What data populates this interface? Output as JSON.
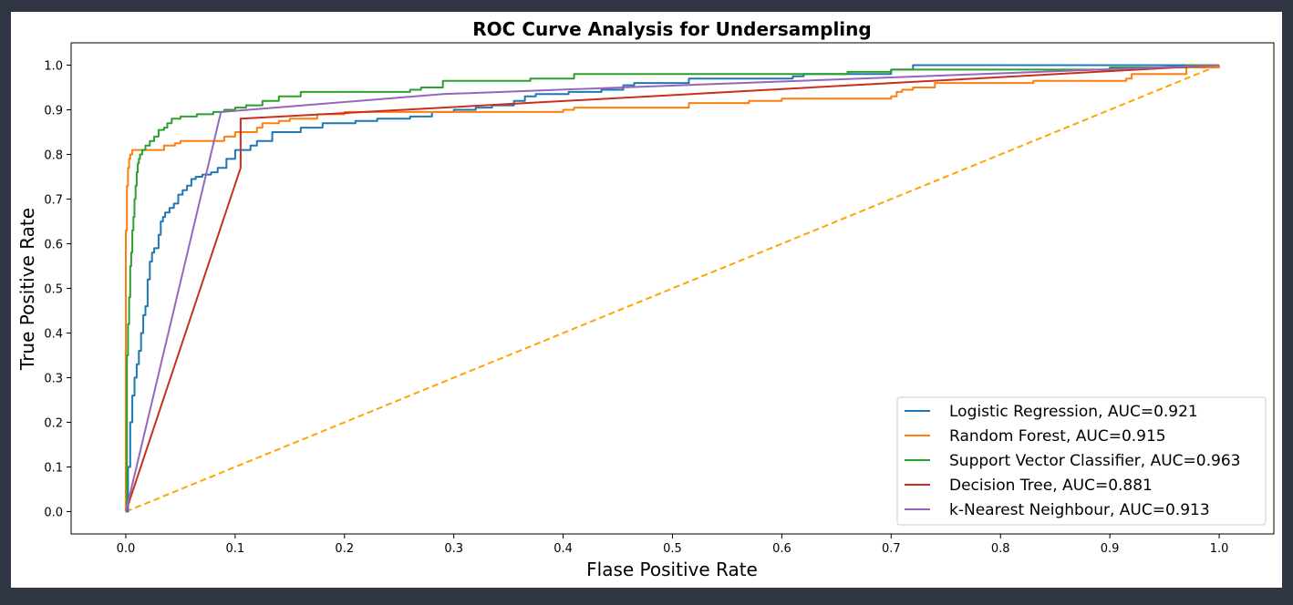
{
  "chart_data": {
    "type": "line",
    "title": "ROC Curve Analysis for Undersampling",
    "xlabel": "Flase Positive Rate",
    "ylabel": "True Positive Rate",
    "xlim": [
      -0.05,
      1.05
    ],
    "ylim": [
      -0.05,
      1.05
    ],
    "x_ticks": [
      0.0,
      0.1,
      0.2,
      0.3,
      0.4,
      0.5,
      0.6,
      0.7,
      0.8,
      0.9,
      1.0
    ],
    "y_ticks": [
      0.0,
      0.1,
      0.2,
      0.3,
      0.4,
      0.5,
      0.6,
      0.7,
      0.8,
      0.9,
      1.0
    ],
    "x_tick_labels": [
      "0.0",
      "0.1",
      "0.2",
      "0.3",
      "0.4",
      "0.5",
      "0.6",
      "0.7",
      "0.8",
      "0.9",
      "1.0"
    ],
    "y_tick_labels": [
      "0.0",
      "0.1",
      "0.2",
      "0.3",
      "0.4",
      "0.5",
      "0.6",
      "0.7",
      "0.8",
      "0.9",
      "1.0"
    ],
    "grid": false,
    "legend_position": "lower-right",
    "series": [
      {
        "name": "Logistic Regression, AUC=0.921",
        "color": "#1f77b4",
        "style": "step",
        "points": [
          [
            0,
            0
          ],
          [
            0.002,
            0.1
          ],
          [
            0.004,
            0.2
          ],
          [
            0.006,
            0.26
          ],
          [
            0.008,
            0.3
          ],
          [
            0.01,
            0.33
          ],
          [
            0.012,
            0.36
          ],
          [
            0.014,
            0.4
          ],
          [
            0.016,
            0.44
          ],
          [
            0.018,
            0.46
          ],
          [
            0.02,
            0.52
          ],
          [
            0.022,
            0.56
          ],
          [
            0.024,
            0.58
          ],
          [
            0.026,
            0.59
          ],
          [
            0.03,
            0.62
          ],
          [
            0.032,
            0.65
          ],
          [
            0.034,
            0.66
          ],
          [
            0.036,
            0.67
          ],
          [
            0.04,
            0.68
          ],
          [
            0.044,
            0.69
          ],
          [
            0.048,
            0.71
          ],
          [
            0.052,
            0.72
          ],
          [
            0.056,
            0.73
          ],
          [
            0.06,
            0.745
          ],
          [
            0.064,
            0.75
          ],
          [
            0.07,
            0.755
          ],
          [
            0.078,
            0.76
          ],
          [
            0.084,
            0.77
          ],
          [
            0.092,
            0.79
          ],
          [
            0.1,
            0.81
          ],
          [
            0.114,
            0.82
          ],
          [
            0.12,
            0.83
          ],
          [
            0.134,
            0.85
          ],
          [
            0.15,
            0.85
          ],
          [
            0.16,
            0.86
          ],
          [
            0.18,
            0.87
          ],
          [
            0.21,
            0.875
          ],
          [
            0.23,
            0.88
          ],
          [
            0.26,
            0.885
          ],
          [
            0.28,
            0.895
          ],
          [
            0.3,
            0.9
          ],
          [
            0.32,
            0.905
          ],
          [
            0.335,
            0.91
          ],
          [
            0.355,
            0.92
          ],
          [
            0.365,
            0.93
          ],
          [
            0.375,
            0.935
          ],
          [
            0.405,
            0.94
          ],
          [
            0.435,
            0.945
          ],
          [
            0.455,
            0.955
          ],
          [
            0.465,
            0.96
          ],
          [
            0.515,
            0.97
          ],
          [
            0.61,
            0.975
          ],
          [
            0.62,
            0.98
          ],
          [
            0.7,
            0.99
          ],
          [
            0.72,
            1.0
          ],
          [
            1.0,
            1.0
          ]
        ]
      },
      {
        "name": "Random Forest, AUC=0.915",
        "color": "#ff7f0e",
        "style": "step",
        "points": [
          [
            0,
            0
          ],
          [
            0.0,
            0.63
          ],
          [
            0.001,
            0.73
          ],
          [
            0.002,
            0.77
          ],
          [
            0.003,
            0.79
          ],
          [
            0.004,
            0.8
          ],
          [
            0.006,
            0.81
          ],
          [
            0.03,
            0.81
          ],
          [
            0.035,
            0.82
          ],
          [
            0.045,
            0.825
          ],
          [
            0.05,
            0.83
          ],
          [
            0.09,
            0.84
          ],
          [
            0.1,
            0.85
          ],
          [
            0.11,
            0.85
          ],
          [
            0.12,
            0.86
          ],
          [
            0.125,
            0.87
          ],
          [
            0.14,
            0.875
          ],
          [
            0.15,
            0.88
          ],
          [
            0.175,
            0.89
          ],
          [
            0.2,
            0.895
          ],
          [
            0.38,
            0.895
          ],
          [
            0.4,
            0.9
          ],
          [
            0.41,
            0.905
          ],
          [
            0.515,
            0.915
          ],
          [
            0.57,
            0.92
          ],
          [
            0.6,
            0.925
          ],
          [
            0.7,
            0.93
          ],
          [
            0.705,
            0.94
          ],
          [
            0.71,
            0.945
          ],
          [
            0.72,
            0.95
          ],
          [
            0.74,
            0.96
          ],
          [
            0.82,
            0.96
          ],
          [
            0.83,
            0.965
          ],
          [
            0.915,
            0.97
          ],
          [
            0.92,
            0.98
          ],
          [
            0.97,
            0.995
          ],
          [
            1.0,
            1.0
          ]
        ]
      },
      {
        "name": "Support Vector Classifier, AUC=0.963",
        "color": "#2ca02c",
        "style": "step",
        "points": [
          [
            0,
            0
          ],
          [
            0.001,
            0.35
          ],
          [
            0.002,
            0.42
          ],
          [
            0.003,
            0.48
          ],
          [
            0.004,
            0.55
          ],
          [
            0.005,
            0.58
          ],
          [
            0.006,
            0.63
          ],
          [
            0.007,
            0.66
          ],
          [
            0.008,
            0.7
          ],
          [
            0.009,
            0.73
          ],
          [
            0.01,
            0.76
          ],
          [
            0.011,
            0.78
          ],
          [
            0.012,
            0.79
          ],
          [
            0.013,
            0.8
          ],
          [
            0.015,
            0.81
          ],
          [
            0.018,
            0.82
          ],
          [
            0.022,
            0.83
          ],
          [
            0.026,
            0.84
          ],
          [
            0.03,
            0.855
          ],
          [
            0.035,
            0.86
          ],
          [
            0.038,
            0.87
          ],
          [
            0.042,
            0.88
          ],
          [
            0.05,
            0.885
          ],
          [
            0.065,
            0.89
          ],
          [
            0.08,
            0.895
          ],
          [
            0.09,
            0.9
          ],
          [
            0.1,
            0.905
          ],
          [
            0.11,
            0.91
          ],
          [
            0.125,
            0.92
          ],
          [
            0.14,
            0.93
          ],
          [
            0.16,
            0.94
          ],
          [
            0.26,
            0.945
          ],
          [
            0.27,
            0.95
          ],
          [
            0.29,
            0.965
          ],
          [
            0.37,
            0.97
          ],
          [
            0.41,
            0.98
          ],
          [
            0.66,
            0.985
          ],
          [
            0.7,
            0.99
          ],
          [
            0.9,
            0.995
          ],
          [
            0.97,
            1.0
          ],
          [
            1.0,
            1.0
          ]
        ]
      },
      {
        "name": "Decision Tree, AUC=0.881",
        "color": "#c7301f",
        "style": "line",
        "points": [
          [
            0,
            0
          ],
          [
            0.105,
            0.77
          ],
          [
            0.105,
            0.88
          ],
          [
            1.0,
            1.0
          ]
        ]
      },
      {
        "name": "k-Nearest Neighbour, AUC=0.913",
        "color": "#9467bd",
        "style": "line",
        "points": [
          [
            0,
            0
          ],
          [
            0.087,
            0.895
          ],
          [
            0.29,
            0.935
          ],
          [
            1.0,
            1.0
          ]
        ]
      },
      {
        "name": "",
        "color": "#ffa500",
        "style": "dashed",
        "points": [
          [
            0,
            0
          ],
          [
            1.0,
            1.0
          ]
        ]
      }
    ]
  }
}
